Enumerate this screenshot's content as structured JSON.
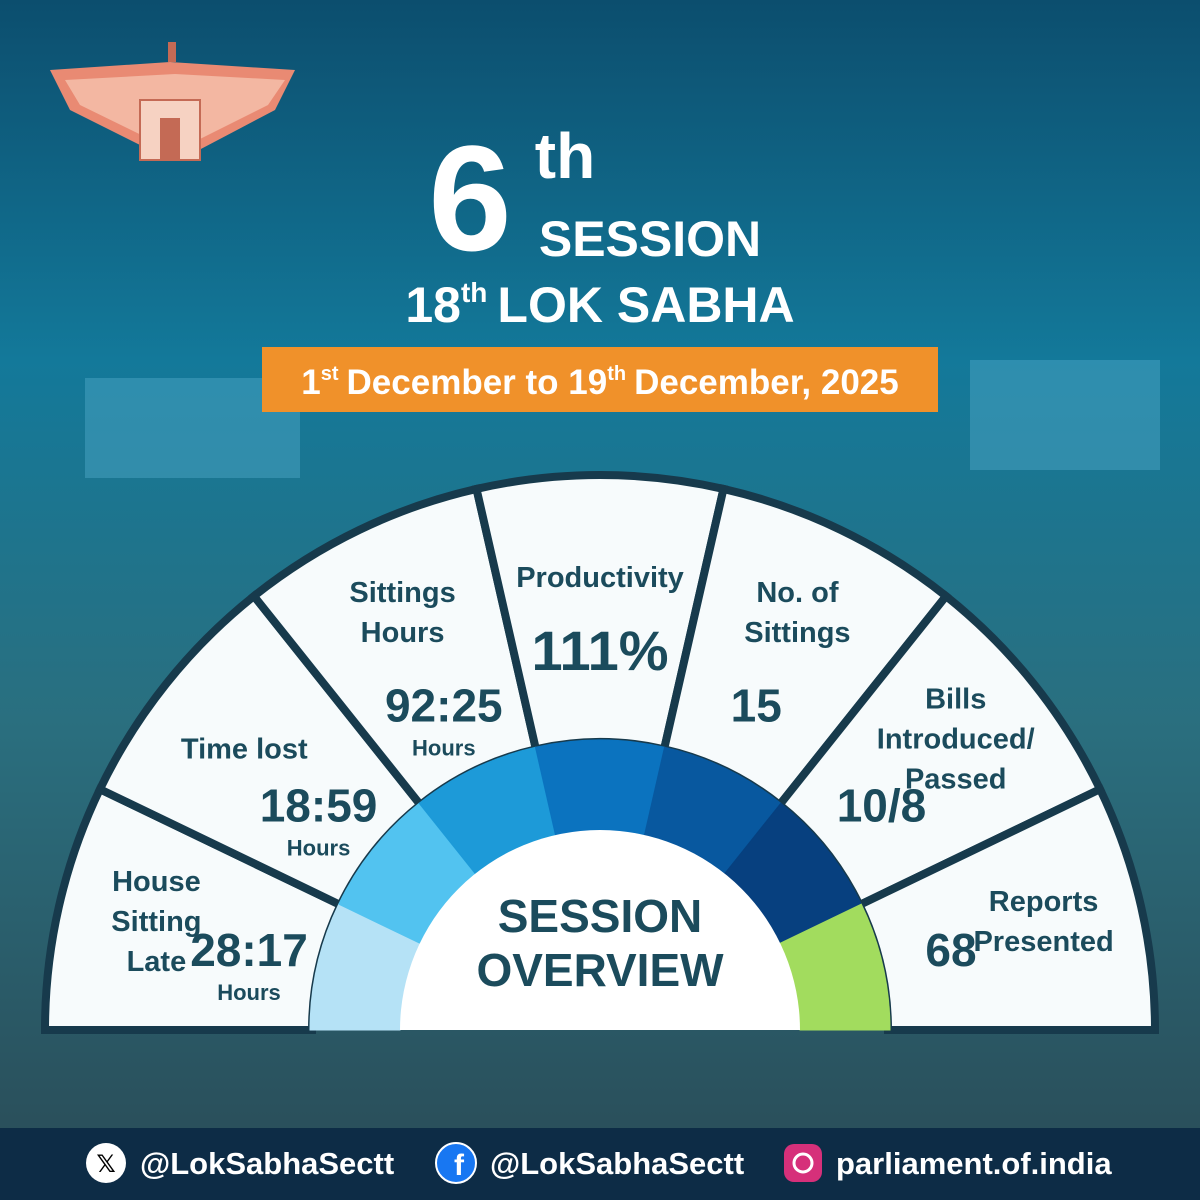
{
  "header": {
    "session": {
      "number": "6",
      "suffix": "th",
      "word": "SESSION"
    },
    "house": {
      "number": "18",
      "suffix": "th",
      "word": "LOK SABHA"
    },
    "dates": {
      "start_day": "1",
      "start_suffix": "st",
      "middle": "December to 19",
      "end_suffix": "th",
      "end": "December, 2025"
    }
  },
  "overview": {
    "title_lines": [
      "SESSION",
      "OVERVIEW"
    ],
    "segments": [
      {
        "label_lines": [
          "House",
          "Sitting",
          "Late"
        ],
        "value": "28:17",
        "unit": "Hours"
      },
      {
        "label_lines": [
          "Time lost"
        ],
        "value": "18:59",
        "unit": "Hours"
      },
      {
        "label_lines": [
          "Sittings",
          "Hours"
        ],
        "value": "92:25",
        "unit": "Hours"
      },
      {
        "label_lines": [
          "Productivity"
        ],
        "value": "111%"
      },
      {
        "label_lines": [
          "No. of",
          "Sittings"
        ],
        "value": "15"
      },
      {
        "label_lines": [
          "Bills",
          "Introduced/",
          "Passed"
        ],
        "value": "10/8"
      },
      {
        "label_lines": [
          "Reports",
          "Presented"
        ],
        "value": "68"
      }
    ]
  },
  "footer": {
    "twitter": "@LokSabhaSectt",
    "facebook": "@LokSabhaSectt",
    "instagram": "parliament.of.india"
  }
}
